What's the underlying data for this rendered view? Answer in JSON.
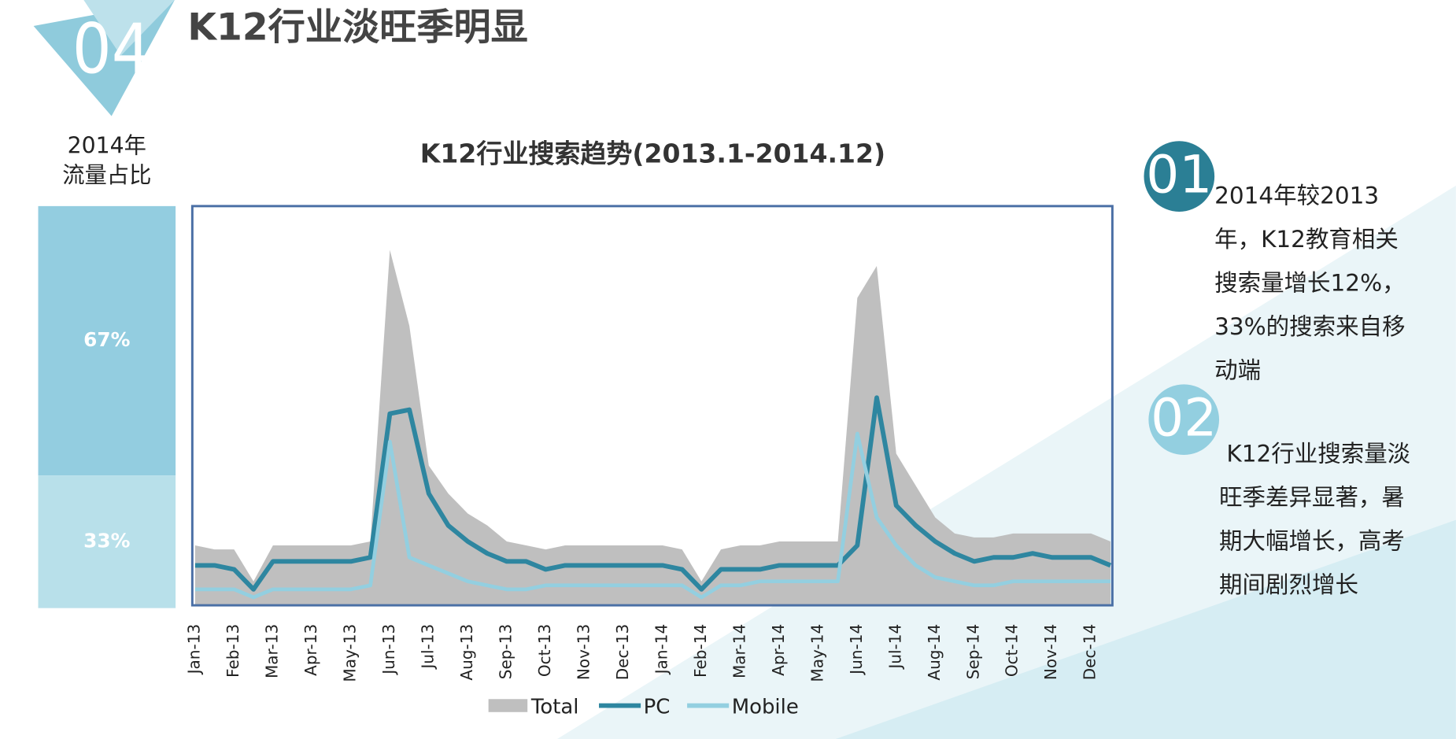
{
  "header": {
    "number": "04",
    "title": "K12行业淡旺季明显"
  },
  "share": {
    "title": [
      "2014年",
      "流量占比"
    ],
    "values": [
      67,
      33
    ],
    "value_labels": [
      "67%",
      "33%"
    ],
    "colors": [
      "#93cde0",
      "#b8e0ea"
    ]
  },
  "chart_data": {
    "type": "line",
    "title": "K12行业搜索趋势(2013.1-2014.12)",
    "categories": [
      "Jan-13",
      null,
      "Feb-13",
      null,
      "Mar-13",
      null,
      "Apr-13",
      null,
      "May-13",
      null,
      "Jun-13",
      null,
      "Jul-13",
      null,
      "Aug-13",
      null,
      "Sep-13",
      null,
      "Oct-13",
      null,
      "Nov-13",
      null,
      "Dec-13",
      null,
      "Jan-14",
      null,
      "Feb-14",
      null,
      "Mar-14",
      null,
      "Apr-14",
      null,
      "May-14",
      null,
      "Jun-14",
      null,
      "Jul-14",
      null,
      "Aug-14",
      null,
      "Sep-14",
      null,
      "Oct-14",
      null,
      "Nov-14",
      null,
      "Dec-14",
      null
    ],
    "ylim": [
      0,
      100
    ],
    "series": [
      {
        "name": "Total",
        "color": "#bfbfbf",
        "style": "area",
        "values": [
          15,
          14,
          14,
          6,
          15,
          15,
          15,
          15,
          15,
          16,
          89,
          70,
          35,
          28,
          23,
          20,
          16,
          15,
          14,
          15,
          15,
          15,
          15,
          15,
          15,
          14,
          6,
          14,
          15,
          15,
          16,
          16,
          16,
          16,
          77,
          85,
          38,
          30,
          22,
          18,
          17,
          17,
          18,
          18,
          18,
          18,
          18,
          16
        ]
      },
      {
        "name": "PC",
        "color": "#2e86a0",
        "style": "line",
        "values": [
          10,
          10,
          9,
          4,
          11,
          11,
          11,
          11,
          11,
          12,
          48,
          49,
          28,
          20,
          16,
          13,
          11,
          11,
          9,
          10,
          10,
          10,
          10,
          10,
          10,
          9,
          4,
          9,
          9,
          9,
          10,
          10,
          10,
          10,
          15,
          52,
          25,
          20,
          16,
          13,
          11,
          12,
          12,
          13,
          12,
          12,
          12,
          10
        ]
      },
      {
        "name": "Mobile",
        "color": "#93cfe0",
        "style": "line",
        "values": [
          4,
          4,
          4,
          2,
          4,
          4,
          4,
          4,
          4,
          5,
          41,
          12,
          10,
          8,
          6,
          5,
          4,
          4,
          5,
          5,
          5,
          5,
          5,
          5,
          5,
          5,
          2,
          5,
          5,
          6,
          6,
          6,
          6,
          6,
          43,
          22,
          15,
          10,
          7,
          6,
          5,
          5,
          6,
          6,
          6,
          6,
          6,
          6
        ]
      }
    ]
  },
  "notes": [
    {
      "number": "01",
      "color": "#2b7f95",
      "lines": [
        "2014年较2013",
        "年，K12教育相关",
        "搜索量增长12%，",
        "33%的搜索来自移",
        "动端"
      ]
    },
    {
      "number": "02",
      "color": "#93cfe0",
      "lines": [
        " K12行业搜索量淡",
        "旺季差异显著，暑",
        "期大幅增长，高考",
        "期间剧烈增长"
      ]
    }
  ]
}
